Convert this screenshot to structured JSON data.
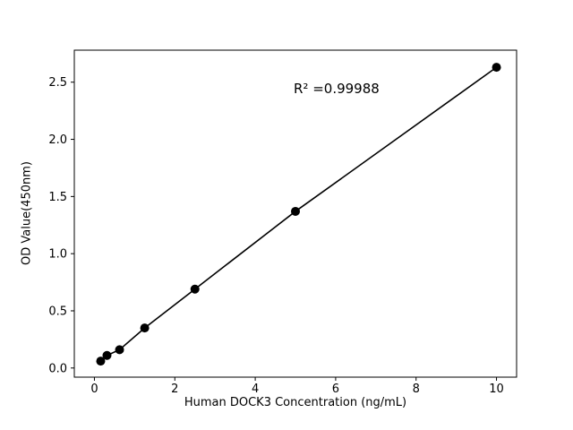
{
  "chart_data": {
    "type": "scatter",
    "title": "",
    "xlabel": "Human DOCK3 Concentration (ng/mL)",
    "ylabel": "OD Value(450nm)",
    "annotation": "R² =0.99988",
    "x": [
      0.156,
      0.3125,
      0.625,
      1.25,
      2.5,
      5,
      10
    ],
    "y": [
      0.06,
      0.11,
      0.16,
      0.35,
      0.69,
      1.37,
      2.63
    ],
    "xticks": [
      0,
      2,
      4,
      6,
      8,
      10
    ],
    "xtick_labels": [
      "0",
      "2",
      "4",
      "6",
      "8",
      "10"
    ],
    "yticks": [
      0.0,
      0.5,
      1.0,
      1.5,
      2.0,
      2.5
    ],
    "ytick_labels": [
      "0.0",
      "0.5",
      "1.0",
      "1.5",
      "2.0",
      "2.5"
    ],
    "xlim": [
      -0.5,
      10.5
    ],
    "ylim": [
      -0.08,
      2.78
    ],
    "line": true,
    "legend": "none",
    "grid": false,
    "line_color": "#000000",
    "marker_color": "#000000",
    "background_color": "#ffffff"
  }
}
